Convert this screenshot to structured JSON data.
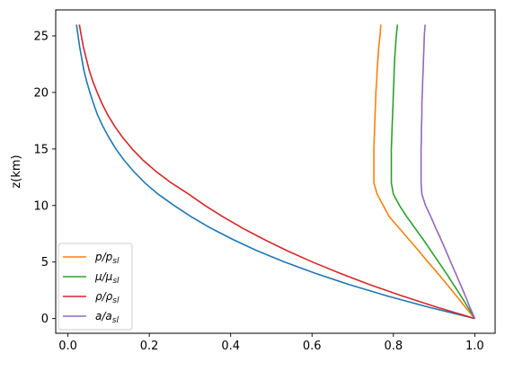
{
  "chart_data": {
    "type": "line",
    "title": "",
    "xlabel": "",
    "ylabel": "z(km)",
    "xlim": [
      -0.03,
      1.05
    ],
    "ylim": [
      -1.3,
      27.3
    ],
    "xticks": [
      0.0,
      0.2,
      0.4,
      0.6,
      0.8,
      1.0
    ],
    "xtick_labels": [
      "0.0",
      "0.2",
      "0.4",
      "0.6",
      "0.8",
      "1.0"
    ],
    "yticks": [
      0,
      5,
      10,
      15,
      20,
      25
    ],
    "ytick_labels": [
      "0",
      "5",
      "10",
      "15",
      "20",
      "25"
    ],
    "grid": false,
    "legend_position": "lower-left",
    "series": [
      {
        "name": "",
        "color": "#1f77b4",
        "x": [
          1.0,
          0.887,
          0.785,
          0.692,
          0.608,
          0.533,
          0.465,
          0.405,
          0.351,
          0.303,
          0.261,
          0.222,
          0.189,
          0.162,
          0.138,
          0.118,
          0.101,
          0.086,
          0.073,
          0.063,
          0.054,
          0.046,
          0.039,
          0.034,
          0.029,
          0.025,
          0.021
        ],
        "y": [
          0,
          1,
          2,
          3,
          4,
          5,
          6,
          7,
          8,
          9,
          10,
          11,
          12,
          13,
          14,
          15,
          16,
          17,
          18,
          19,
          20,
          21,
          22,
          23,
          24,
          25,
          26
        ]
      },
      {
        "name": "p/p_sl",
        "legend_label": "p/p",
        "legend_sub": "sl",
        "color": "#ff7f0e",
        "x": [
          1.0,
          0.977,
          0.955,
          0.932,
          0.909,
          0.885,
          0.862,
          0.838,
          0.814,
          0.79,
          0.775,
          0.76,
          0.752,
          0.752,
          0.752,
          0.752,
          0.753,
          0.754,
          0.755,
          0.756,
          0.757,
          0.759,
          0.76,
          0.762,
          0.764,
          0.767,
          0.769
        ],
        "y": [
          0,
          1,
          2,
          3,
          4,
          5,
          6,
          7,
          8,
          9,
          10,
          11,
          12,
          13,
          14,
          15,
          16,
          17,
          18,
          19,
          20,
          21,
          22,
          23,
          24,
          25,
          26
        ]
      },
      {
        "name": "μ/μ_sl",
        "legend_label": "μ/μ",
        "legend_sub": "sl",
        "color": "#2ca02c",
        "x": [
          1.0,
          0.983,
          0.966,
          0.948,
          0.93,
          0.911,
          0.892,
          0.873,
          0.853,
          0.833,
          0.815,
          0.8,
          0.795,
          0.795,
          0.795,
          0.795,
          0.796,
          0.797,
          0.798,
          0.799,
          0.8,
          0.801,
          0.802,
          0.803,
          0.805,
          0.807,
          0.81
        ],
        "y": [
          0,
          1,
          2,
          3,
          4,
          5,
          6,
          7,
          8,
          9,
          10,
          11,
          12,
          13,
          14,
          15,
          16,
          17,
          18,
          19,
          20,
          21,
          22,
          23,
          24,
          25,
          26
        ]
      },
      {
        "name": "ρ/ρ_sl",
        "legend_label": "ρ/ρ",
        "legend_sub": "sl",
        "color": "#d62728",
        "x": [
          1.0,
          0.907,
          0.822,
          0.742,
          0.669,
          0.601,
          0.539,
          0.482,
          0.429,
          0.381,
          0.337,
          0.297,
          0.254,
          0.217,
          0.185,
          0.158,
          0.135,
          0.115,
          0.098,
          0.084,
          0.072,
          0.061,
          0.052,
          0.045,
          0.038,
          0.033,
          0.028
        ],
        "y": [
          0,
          1,
          2,
          3,
          4,
          5,
          6,
          7,
          8,
          9,
          10,
          11,
          12,
          13,
          14,
          15,
          16,
          17,
          18,
          19,
          20,
          21,
          22,
          23,
          24,
          25,
          26
        ]
      },
      {
        "name": "a/a_sl",
        "legend_label": "a/a",
        "legend_sub": "sl",
        "color": "#9467bd",
        "x": [
          1.0,
          0.988,
          0.977,
          0.965,
          0.953,
          0.941,
          0.929,
          0.917,
          0.904,
          0.892,
          0.879,
          0.87,
          0.868,
          0.868,
          0.868,
          0.868,
          0.869,
          0.869,
          0.87,
          0.87,
          0.871,
          0.872,
          0.873,
          0.874,
          0.875,
          0.876,
          0.878
        ],
        "y": [
          0,
          1,
          2,
          3,
          4,
          5,
          6,
          7,
          8,
          9,
          10,
          11,
          12,
          13,
          14,
          15,
          16,
          17,
          18,
          19,
          20,
          21,
          22,
          23,
          24,
          25,
          26
        ]
      }
    ]
  }
}
